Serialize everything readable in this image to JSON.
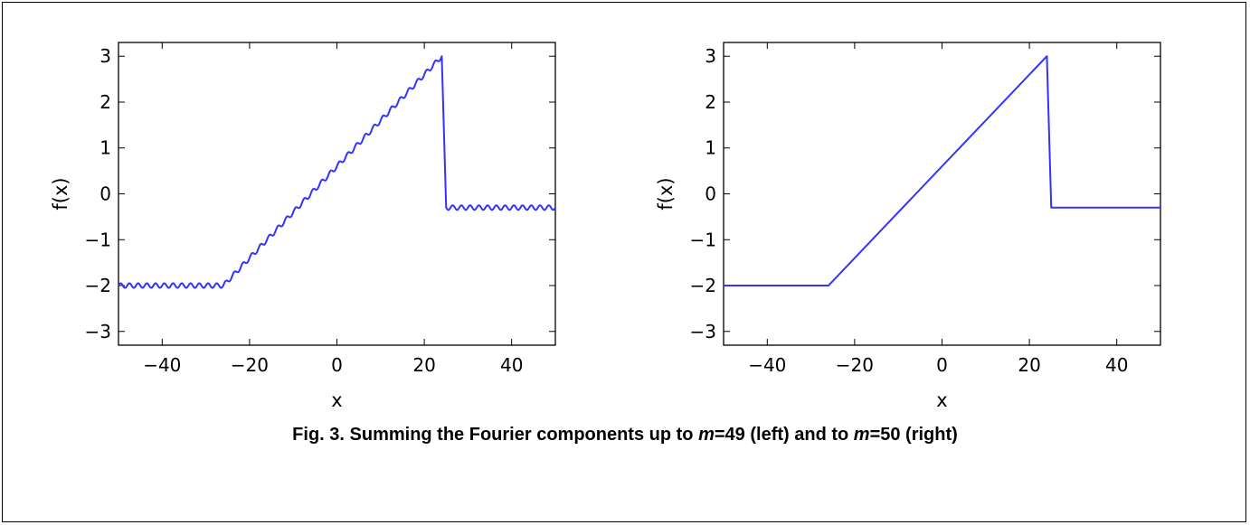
{
  "figure": {
    "caption_parts": [
      "Fig. 3. Summing the Fourier components up to ",
      "m",
      "=49 (left) and to ",
      "m",
      "=50 (right)"
    ]
  },
  "chart_data": [
    {
      "type": "line",
      "title": "",
      "xlabel": "x",
      "ylabel": "f(x)",
      "xlim": [
        -50,
        50
      ],
      "ylim": [
        -3.3,
        3.3
      ],
      "xticks": [
        -40,
        -20,
        0,
        20,
        40
      ],
      "yticks": [
        -3,
        -2,
        -1,
        0,
        1,
        2,
        3
      ],
      "grid": false,
      "line_color": "#3333ff",
      "description_values": {
        "x": [
          -50,
          -26,
          24,
          25,
          50
        ],
        "y": [
          -2.0,
          -2.0,
          3.0,
          -0.3,
          -0.3
        ]
      },
      "ripple": {
        "amplitude": 0.05,
        "period": 2.0
      },
      "series": [
        {
          "x": [
            -50,
            -26,
            24,
            25,
            50
          ],
          "y": [
            -2.0,
            -2.0,
            3.0,
            -0.3,
            -0.3
          ]
        }
      ]
    },
    {
      "type": "line",
      "title": "",
      "xlabel": "x",
      "ylabel": "f(x)",
      "xlim": [
        -50,
        50
      ],
      "ylim": [
        -3.3,
        3.3
      ],
      "xticks": [
        -40,
        -20,
        0,
        20,
        40
      ],
      "yticks": [
        -3,
        -2,
        -1,
        0,
        1,
        2,
        3
      ],
      "grid": false,
      "line_color": "#3333ff",
      "series": [
        {
          "x": [
            -50,
            -26,
            24,
            25,
            50
          ],
          "y": [
            -2.0,
            -2.0,
            3.0,
            -0.3,
            -0.3
          ]
        }
      ]
    }
  ]
}
